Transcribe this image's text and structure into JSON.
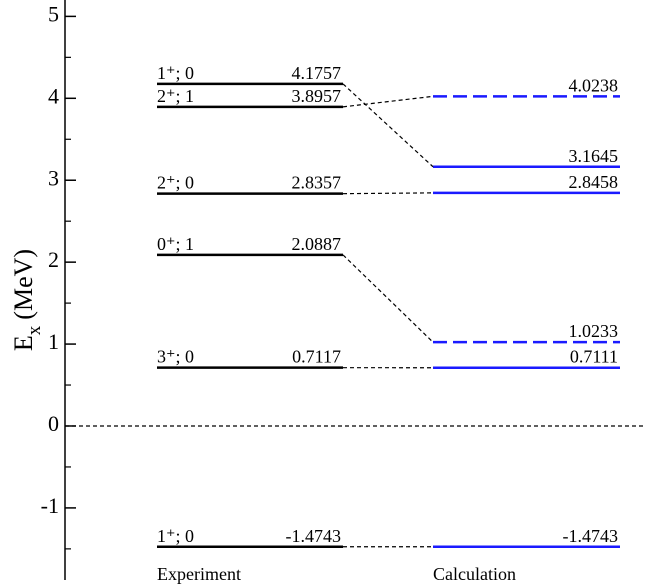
{
  "chart_data": {
    "type": "level",
    "ylabel": "E",
    "ylabel_sub": "x",
    "ylabel_unit": "(MeV)",
    "ylim": [
      -1.88,
      5.2
    ],
    "yticks": [
      -1,
      0,
      1,
      2,
      3,
      4,
      5
    ],
    "minor_yticks": [
      -1.5,
      -0.5,
      0.5,
      1.5,
      2.5,
      3.5,
      4.5
    ],
    "columns": [
      {
        "name": "Experiment",
        "color": "#000000",
        "labels": [
          "1⁺; 0",
          "2⁺; 1",
          "2⁺; 0",
          "0⁺; 1",
          "3⁺; 0",
          "1⁺; 0"
        ],
        "values": [
          4.1757,
          3.8957,
          2.8357,
          2.0887,
          0.7117,
          -1.4743
        ],
        "dashed": [
          false,
          false,
          false,
          false,
          false,
          false
        ]
      },
      {
        "name": "Calculation",
        "color": "#1a1aff",
        "values": [
          4.0238,
          3.1645,
          2.8458,
          1.0233,
          0.7111,
          -1.4743
        ],
        "dashed": [
          true,
          false,
          false,
          true,
          false,
          false
        ]
      }
    ],
    "links": [
      [
        0,
        1
      ],
      [
        1,
        0
      ],
      [
        2,
        2
      ],
      [
        3,
        3
      ],
      [
        4,
        4
      ],
      [
        5,
        5
      ]
    ]
  }
}
